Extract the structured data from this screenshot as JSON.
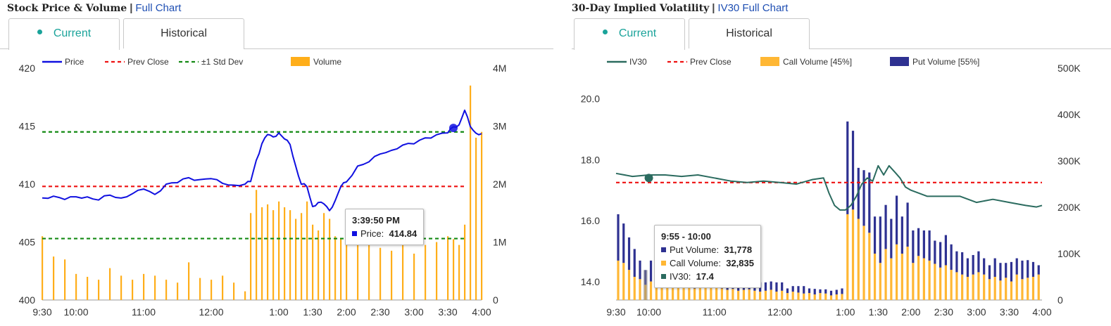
{
  "left": {
    "title": "Stock Price & Volume",
    "separator": "|",
    "link": "Full Chart",
    "tabs": [
      {
        "label": "Current",
        "active": true
      },
      {
        "label": "Historical",
        "active": false
      }
    ],
    "legend": [
      "Price",
      "Prev Close",
      "±1 Std Dev",
      "Volume"
    ],
    "tooltip": {
      "time": "3:39:50 PM",
      "label": "Price:",
      "value": "414.84"
    }
  },
  "right": {
    "title": "30-Day Implied Volatility",
    "separator": "|",
    "link": "IV30 Full Chart",
    "tabs": [
      {
        "label": "Current",
        "active": true
      },
      {
        "label": "Historical",
        "active": false
      }
    ],
    "legend": [
      "IV30",
      "Prev Close",
      "Call Volume [45%]",
      "Put Volume [55%]"
    ],
    "tooltip": {
      "time": "9:55 - 10:00",
      "put_label": "Put Volume:",
      "put_value": "31,778",
      "call_label": "Call Volume:",
      "call_value": "32,835",
      "iv_label": "IV30:",
      "iv_value": "17.4"
    }
  },
  "colors": {
    "price": "#1010e0",
    "prev_close": "#ee1111",
    "std_dev": "#138a13",
    "volume": "#ffae1a",
    "iv30": "#2b6b5f",
    "call_volume": "#ffb734",
    "put_volume": "#2e3191",
    "accent": "#1aa39a",
    "link": "#1f4fb3"
  },
  "chart_data": [
    {
      "type": "line",
      "name": "Stock Price & Volume",
      "x_ticks": [
        "9:30",
        "10:00",
        "11:00",
        "12:00",
        "1:00",
        "1:30",
        "2:00",
        "2:30",
        "3:00",
        "3:30",
        "4:00"
      ],
      "y_left_ticks": [
        "400",
        "405",
        "410",
        "415",
        "420"
      ],
      "y_left_range": [
        400,
        420
      ],
      "y_right_ticks": [
        "0",
        "1M",
        "2M",
        "3M",
        "4M"
      ],
      "y_right_range": [
        0,
        4000000
      ],
      "prev_close": 409.8,
      "std_dev_upper": 414.5,
      "std_dev_lower": 405.3,
      "series": [
        {
          "name": "Price",
          "x": [
            "9:30",
            "9:40",
            "9:50",
            "10:00",
            "10:10",
            "10:20",
            "10:30",
            "10:40",
            "10:50",
            "11:00",
            "11:10",
            "11:20",
            "11:30",
            "11:40",
            "11:50",
            "12:00",
            "12:10",
            "12:20",
            "12:30",
            "12:35",
            "12:40",
            "12:45",
            "12:50",
            "12:55",
            "1:00",
            "1:05",
            "1:10",
            "1:15",
            "1:20",
            "1:25",
            "1:30",
            "1:35",
            "1:40",
            "1:45",
            "1:50",
            "1:55",
            "2:00",
            "2:10",
            "2:20",
            "2:30",
            "2:40",
            "2:50",
            "3:00",
            "3:10",
            "3:20",
            "3:30",
            "3:35",
            "3:40",
            "3:45",
            "3:50",
            "3:55",
            "4:00"
          ],
          "y": [
            408.8,
            409.0,
            408.6,
            409.0,
            408.8,
            408.7,
            409.0,
            408.8,
            409.2,
            409.5,
            409.2,
            409.9,
            410.2,
            410.5,
            410.4,
            410.5,
            410.0,
            410.0,
            409.9,
            410.3,
            412.0,
            413.5,
            414.3,
            414.0,
            414.5,
            413.8,
            413.5,
            411.5,
            410.0,
            409.8,
            408.0,
            408.5,
            408.2,
            407.8,
            408.5,
            409.8,
            410.2,
            411.5,
            412.0,
            412.5,
            413.0,
            413.3,
            413.5,
            414.0,
            414.2,
            414.5,
            414.84,
            415.2,
            416.3,
            415.0,
            414.4,
            414.3
          ]
        },
        {
          "name": "Volume",
          "x": [
            "9:30",
            "9:40",
            "9:50",
            "10:00",
            "10:10",
            "10:20",
            "10:30",
            "10:40",
            "10:50",
            "11:00",
            "11:10",
            "11:20",
            "11:30",
            "11:40",
            "11:50",
            "12:00",
            "12:10",
            "12:20",
            "12:30",
            "12:35",
            "12:40",
            "12:45",
            "12:50",
            "12:55",
            "1:00",
            "1:05",
            "1:10",
            "1:15",
            "1:20",
            "1:25",
            "1:30",
            "1:35",
            "1:40",
            "1:45",
            "1:50",
            "1:55",
            "2:00",
            "2:10",
            "2:20",
            "2:30",
            "2:40",
            "2:50",
            "3:00",
            "3:10",
            "3:20",
            "3:30",
            "3:35",
            "3:40",
            "3:45",
            "3:50",
            "3:55",
            "4:00"
          ],
          "y": [
            1100000,
            750000,
            700000,
            450000,
            400000,
            350000,
            550000,
            420000,
            350000,
            450000,
            420000,
            350000,
            300000,
            650000,
            380000,
            350000,
            420000,
            300000,
            150000,
            1500000,
            1900000,
            1600000,
            1650000,
            1550000,
            1700000,
            1600000,
            1550000,
            1400000,
            1500000,
            1700000,
            1300000,
            1200000,
            1500000,
            1400000,
            1100000,
            1050000,
            1300000,
            1000000,
            950000,
            900000,
            850000,
            1000000,
            800000,
            950000,
            1000000,
            1100000,
            1050000,
            950000,
            1300000,
            3700000,
            2800000,
            2900000
          ]
        }
      ]
    },
    {
      "type": "line",
      "name": "30-Day Implied Volatility",
      "x_ticks": [
        "9:30",
        "10:00",
        "11:00",
        "12:00",
        "1:00",
        "1:30",
        "2:00",
        "2:30",
        "3:00",
        "3:30",
        "4:00"
      ],
      "y_left_ticks": [
        "14.0",
        "16.0",
        "18.0",
        "20.0"
      ],
      "y_left_range": [
        13.4,
        21.0
      ],
      "y_right_ticks": [
        "0",
        "100K",
        "200K",
        "300K",
        "400K",
        "500K"
      ],
      "y_right_range": [
        0,
        500000
      ],
      "prev_close": 17.25,
      "series": [
        {
          "name": "IV30",
          "x": [
            "9:30",
            "9:45",
            "10:00",
            "10:15",
            "10:30",
            "10:45",
            "11:00",
            "11:15",
            "11:30",
            "11:45",
            "12:00",
            "12:15",
            "12:30",
            "12:40",
            "12:45",
            "12:50",
            "12:55",
            "1:00",
            "1:05",
            "1:10",
            "1:15",
            "1:20",
            "1:25",
            "1:30",
            "1:35",
            "1:40",
            "1:45",
            "1:50",
            "1:55",
            "2:00",
            "2:15",
            "2:30",
            "2:45",
            "3:00",
            "3:15",
            "3:30",
            "3:45",
            "3:55",
            "4:00"
          ],
          "y": [
            17.55,
            17.45,
            17.5,
            17.5,
            17.45,
            17.5,
            17.4,
            17.3,
            17.25,
            17.3,
            17.25,
            17.2,
            17.35,
            17.4,
            16.9,
            16.5,
            16.35,
            16.35,
            16.5,
            16.8,
            17.2,
            17.4,
            17.3,
            17.8,
            17.5,
            17.8,
            17.6,
            17.4,
            17.1,
            17.0,
            16.8,
            16.8,
            16.8,
            16.6,
            16.7,
            16.6,
            16.5,
            16.45,
            16.5
          ]
        },
        {
          "name": "Call Volume [45%]",
          "x": [
            "9:30",
            "9:35",
            "9:40",
            "9:45",
            "9:50",
            "9:55",
            "10:00",
            "10:05",
            "10:10",
            "10:15",
            "10:20",
            "10:25",
            "10:30",
            "10:35",
            "10:40",
            "10:45",
            "10:50",
            "10:55",
            "11:00",
            "11:05",
            "11:10",
            "11:15",
            "11:20",
            "11:25",
            "11:30",
            "11:35",
            "11:40",
            "11:45",
            "11:50",
            "11:55",
            "12:00",
            "12:05",
            "12:10",
            "12:15",
            "12:20",
            "12:25",
            "12:30",
            "12:35",
            "12:40",
            "12:45",
            "12:50",
            "12:55",
            "1:00",
            "1:05",
            "1:10",
            "1:15",
            "1:20",
            "1:25",
            "1:30",
            "1:35",
            "1:40",
            "1:45",
            "1:50",
            "1:55",
            "2:00",
            "2:05",
            "2:10",
            "2:15",
            "2:20",
            "2:25",
            "2:30",
            "2:35",
            "2:40",
            "2:45",
            "2:50",
            "2:55",
            "3:00",
            "3:05",
            "3:10",
            "3:15",
            "3:20",
            "3:25",
            "3:30",
            "3:35",
            "3:40",
            "3:45",
            "3:50",
            "3:55"
          ],
          "y": [
            85000,
            80000,
            65000,
            50000,
            45000,
            32835,
            40000,
            35000,
            38000,
            35000,
            30000,
            32000,
            28000,
            30000,
            25000,
            28000,
            30000,
            26000,
            28000,
            25000,
            22000,
            24000,
            20000,
            22000,
            23000,
            20000,
            18000,
            20000,
            22000,
            18000,
            20000,
            15000,
            18000,
            16000,
            14000,
            15000,
            12000,
            15000,
            14000,
            10000,
            12000,
            13000,
            185000,
            195000,
            175000,
            160000,
            145000,
            100000,
            80000,
            110000,
            90000,
            120000,
            100000,
            115000,
            80000,
            95000,
            90000,
            85000,
            78000,
            70000,
            75000,
            65000,
            60000,
            55000,
            50000,
            55000,
            60000,
            55000,
            45000,
            50000,
            42000,
            48000,
            40000,
            55000,
            45000,
            48000,
            50000,
            55000
          ]
        },
        {
          "name": "Put Volume [55%]",
          "x": [
            "9:30",
            "9:35",
            "9:40",
            "9:45",
            "9:50",
            "9:55",
            "10:00",
            "10:05",
            "10:10",
            "10:15",
            "10:20",
            "10:25",
            "10:30",
            "10:35",
            "10:40",
            "10:45",
            "10:50",
            "10:55",
            "11:00",
            "11:05",
            "11:10",
            "11:15",
            "11:20",
            "11:25",
            "11:30",
            "11:35",
            "11:40",
            "11:45",
            "11:50",
            "11:55",
            "12:00",
            "12:05",
            "12:10",
            "12:15",
            "12:20",
            "12:25",
            "12:30",
            "12:35",
            "12:40",
            "12:45",
            "12:50",
            "12:55",
            "1:00",
            "1:05",
            "1:10",
            "1:15",
            "1:20",
            "1:25",
            "1:30",
            "1:35",
            "1:40",
            "1:45",
            "1:50",
            "1:55",
            "2:00",
            "2:05",
            "2:10",
            "2:15",
            "2:20",
            "2:25",
            "2:30",
            "2:35",
            "2:40",
            "2:45",
            "2:50",
            "2:55",
            "3:00",
            "3:05",
            "3:10",
            "3:15",
            "3:20",
            "3:25",
            "3:30",
            "3:35",
            "3:40",
            "3:45",
            "3:50",
            "3:55"
          ],
          "y": [
            100000,
            85000,
            70000,
            60000,
            40000,
            31778,
            45000,
            40000,
            30000,
            35000,
            32000,
            28000,
            30000,
            25000,
            28000,
            30000,
            22000,
            26000,
            25000,
            24000,
            26000,
            20000,
            22000,
            18000,
            20000,
            22000,
            20000,
            18000,
            18000,
            20000,
            18000,
            10000,
            12000,
            14000,
            16000,
            10000,
            12000,
            8000,
            9000,
            10000,
            10000,
            12000,
            200000,
            170000,
            110000,
            120000,
            130000,
            80000,
            100000,
            95000,
            85000,
            105000,
            80000,
            95000,
            70000,
            60000,
            60000,
            65000,
            50000,
            55000,
            65000,
            55000,
            45000,
            48000,
            40000,
            42000,
            45000,
            35000,
            30000,
            40000,
            38000,
            32000,
            42000,
            35000,
            40000,
            38000,
            32000,
            20000
          ]
        }
      ]
    }
  ]
}
